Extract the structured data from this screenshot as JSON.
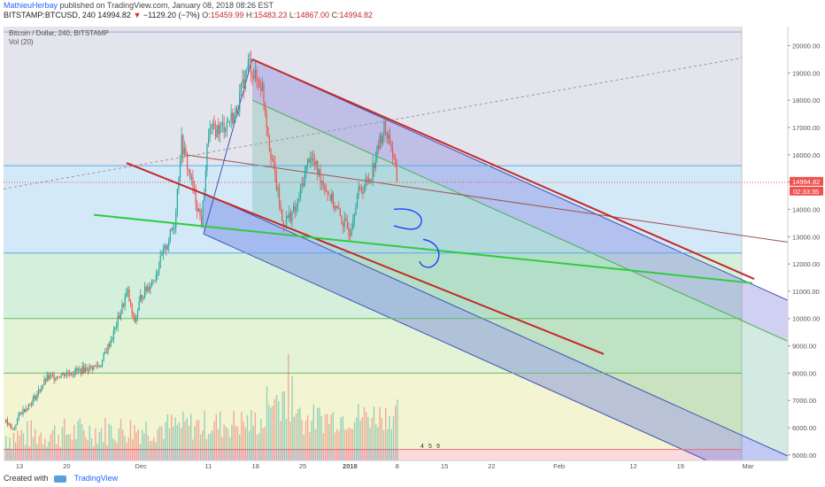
{
  "header": {
    "author": "MathieuHerbay",
    "published_text": "published on TradingView.com, January 08, 2018 08:26 EST",
    "symbol": "BITSTAMP:BTCUSD, 240",
    "last": "14994.82",
    "change_arrow": "▼",
    "change": "−1129.20 (−7%)",
    "o_label": "O:",
    "o_value": "15459.99",
    "h_label": "H:",
    "h_value": "15483.23",
    "l_label": "L:",
    "l_value": "14867.00",
    "c_label": "C:",
    "c_value": "14994.82"
  },
  "legend": {
    "series": "Bitcoin / Dollar, 240, BITSTAMP",
    "volume": "Vol (20)"
  },
  "footer": {
    "created_with": "Created with",
    "brand": "TradingView"
  },
  "chart_data": {
    "type": "candlestick",
    "y_axis": {
      "ticks": [
        5000,
        6000,
        7000,
        8000,
        9000,
        10000,
        11000,
        12000,
        13000,
        14000,
        15000,
        16000,
        17000,
        18000,
        19000,
        20000
      ],
      "tick_labels": [
        "5000.00",
        "6000.00",
        "7000.00",
        "8000.00",
        "9000.00",
        "10000.00",
        "11000.00",
        "12000.00",
        "13000.00",
        "14000.00",
        "15000.00",
        "16000.00",
        "17000.00",
        "18000.00",
        "19000.00",
        "20000.00"
      ],
      "range": [
        4800,
        20700
      ]
    },
    "x_axis": {
      "tick_labels": [
        "13",
        "20",
        "Dec",
        "11",
        "18",
        "25",
        "2018",
        "8",
        "15",
        "22",
        "Feb",
        "12",
        "19",
        "Mar"
      ],
      "range_days": [
        "2017-11-11",
        "2018-03-05"
      ]
    },
    "price_badge": {
      "value": "14994.82",
      "timer": "02:33:35"
    },
    "price_path": [
      [
        "2017-11-11",
        6200
      ],
      [
        "2017-11-12",
        5900
      ],
      [
        "2017-11-13",
        6500
      ],
      [
        "2017-11-15",
        7000
      ],
      [
        "2017-11-17",
        7800
      ],
      [
        "2017-11-20",
        8000
      ],
      [
        "2017-11-22",
        8100
      ],
      [
        "2017-11-25",
        8300
      ],
      [
        "2017-11-27",
        9500
      ],
      [
        "2017-11-29",
        11000
      ],
      [
        "2017-11-30",
        9800
      ],
      [
        "2017-12-01",
        10800
      ],
      [
        "2017-12-03",
        11500
      ],
      [
        "2017-12-06",
        13500
      ],
      [
        "2017-12-07",
        16500
      ],
      [
        "2017-12-08",
        15500
      ],
      [
        "2017-12-09",
        14500
      ],
      [
        "2017-12-10",
        13500
      ],
      [
        "2017-12-11",
        16800
      ],
      [
        "2017-12-13",
        17000
      ],
      [
        "2017-12-15",
        17500
      ],
      [
        "2017-12-17",
        19400
      ],
      [
        "2017-12-18",
        18800
      ],
      [
        "2017-12-19",
        18500
      ],
      [
        "2017-12-20",
        16500
      ],
      [
        "2017-12-22",
        13500
      ],
      [
        "2017-12-24",
        14000
      ],
      [
        "2017-12-26",
        16000
      ],
      [
        "2017-12-27",
        15500
      ],
      [
        "2017-12-29",
        14500
      ],
      [
        "2017-12-31",
        13500
      ],
      [
        "2018-01-01",
        13200
      ],
      [
        "2018-01-02",
        14500
      ],
      [
        "2018-01-04",
        15200
      ],
      [
        "2018-01-06",
        17000
      ],
      [
        "2018-01-07",
        16500
      ],
      [
        "2018-01-08",
        14994.82
      ]
    ],
    "volume_profile": "histogram at bottom, pink/grey bars",
    "horizontal_levels": [
      {
        "value": 15600,
        "color": "#5aa9e6"
      },
      {
        "value": 12400,
        "color": "#5aa9e6"
      },
      {
        "value": 10000,
        "color": "#66bb6a"
      },
      {
        "value": 8000,
        "color": "#66bb6a"
      },
      {
        "value": 5200,
        "color": "#e57373"
      }
    ],
    "fib_bands": [
      {
        "from": 15600,
        "to": 20700,
        "color": "#e4e4ec"
      },
      {
        "from": 12400,
        "to": 15600,
        "color": "#d3e9f8"
      },
      {
        "from": 10000,
        "to": 12400,
        "color": "#d4f0dc"
      },
      {
        "from": 8000,
        "to": 10000,
        "color": "#e3f4d6"
      },
      {
        "from": 5200,
        "to": 8000,
        "color": "#f3f4d2"
      },
      {
        "from": 4800,
        "to": 5200,
        "color": "#fadadd"
      }
    ],
    "colors": {
      "candle_up": "#26a69a",
      "candle_down": "#ef5350",
      "channel_blue": "#3f51b5",
      "trend_red": "#c62828",
      "trend_green": "#2ecc40",
      "drawing_blue": "#1e40ff"
    },
    "drawings_mini_labels": [
      "4",
      "5",
      "9"
    ]
  }
}
